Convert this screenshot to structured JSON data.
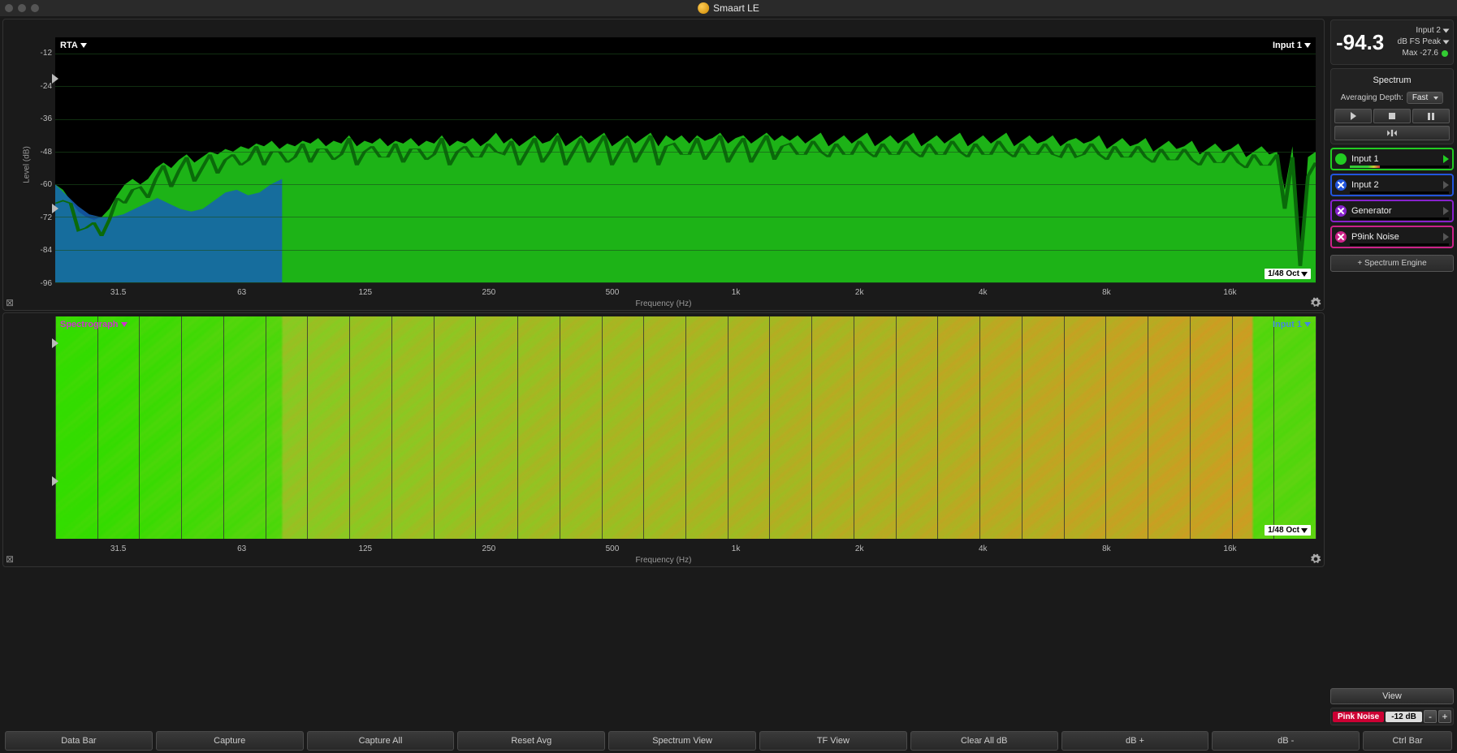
{
  "app_title": "Smaart LE",
  "titlebar": {
    "traffic_colors": [
      "#555",
      "#555",
      "#555"
    ]
  },
  "level_meter": {
    "value": "-94.3",
    "input_label": "Input 2",
    "peak_label": "dB FS Peak",
    "max_label": "Max -27.6"
  },
  "spectrum_panel": {
    "title": "Spectrum",
    "avg_label": "Averaging Depth:",
    "avg_value": "Fast",
    "inputs": [
      {
        "label": "Input 1",
        "border": "#22cc22",
        "bullet": "#22cc22",
        "x": false,
        "play": "#22cc22",
        "meter_fill": 30,
        "meter_color": "linear-gradient(90deg,#3c3 60%,#cc3 80%,#c33)"
      },
      {
        "label": "Input 2",
        "border": "#2255dd",
        "bullet": "#2255dd",
        "x": true,
        "play": "#555",
        "meter_fill": 0,
        "meter_color": ""
      },
      {
        "label": "Generator",
        "border": "#8822cc",
        "bullet": "#8822cc",
        "x": true,
        "play": "#555",
        "meter_fill": 0,
        "meter_color": ""
      },
      {
        "label": "P9ink Noise",
        "border": "#cc2288",
        "bullet": "#cc2288",
        "x": true,
        "play": "#555",
        "meter_fill": 0,
        "meter_color": ""
      }
    ],
    "add_engine": "+ Spectrum Engine"
  },
  "view_button": "View",
  "noise_row": {
    "label": "Pink Noise",
    "db": "-12 dB"
  },
  "bottombar": [
    "Data Bar",
    "Capture",
    "Capture All",
    "Reset Avg",
    "Spectrum View",
    "TF View",
    "Clear All dB",
    "dB +",
    "dB -",
    "Ctrl Bar"
  ],
  "rta_chart": {
    "type": "spectrum",
    "title_left": "RTA",
    "title_right": "Input 1",
    "resolution_badge": "1/48 Oct",
    "yaxis_label": "Level (dB)",
    "xaxis_label": "Frequency (Hz)",
    "ylim": [
      -96,
      -6
    ],
    "yticks": [
      -12,
      -24,
      -36,
      -48,
      -60,
      -72,
      -84,
      -96
    ],
    "xticks": [
      "31.5",
      "63",
      "125",
      "250",
      "500",
      "1k",
      "2k",
      "4k",
      "8k",
      "16k"
    ],
    "xtick_positions_pct": [
      5.0,
      14.8,
      24.6,
      34.4,
      44.2,
      54.0,
      63.8,
      73.6,
      83.4,
      93.2
    ],
    "marker_positions_pct": [
      15,
      68
    ],
    "fill_color": "#1db317",
    "line_overlay_color": "#0a6a0a",
    "blue_fill_color": "#1560b5",
    "grid_color": "#1a4d1a",
    "data_db": [
      -60,
      -62,
      -66,
      -70,
      -72,
      -73,
      -72,
      -69,
      -64,
      -60,
      -58,
      -60,
      -58,
      -54,
      -52,
      -54,
      -51,
      -49,
      -52,
      -50,
      -48,
      -49,
      -47,
      -48,
      -46,
      -47,
      -45,
      -46,
      -44,
      -47,
      -45,
      -46,
      -44,
      -45,
      -43,
      -46,
      -44,
      -45,
      -42,
      -46,
      -44,
      -45,
      -43,
      -46,
      -44,
      -45,
      -43,
      -46,
      -44,
      -45,
      -42,
      -46,
      -44,
      -45,
      -43,
      -46,
      -44,
      -41,
      -45,
      -43,
      -46,
      -44,
      -42,
      -45,
      -44,
      -41,
      -46,
      -44,
      -42,
      -45,
      -43,
      -41,
      -46,
      -44,
      -42,
      -45,
      -43,
      -41,
      -46,
      -42,
      -44,
      -42,
      -45,
      -42,
      -44,
      -43,
      -41,
      -45,
      -43,
      -42,
      -45,
      -43,
      -41,
      -44,
      -42,
      -44,
      -42,
      -45,
      -43,
      -41,
      -46,
      -44,
      -42,
      -45,
      -43,
      -41,
      -46,
      -44,
      -42,
      -45,
      -43,
      -41,
      -46,
      -44,
      -42,
      -45,
      -43,
      -41,
      -46,
      -44,
      -42,
      -45,
      -43,
      -41,
      -46,
      -44,
      -42,
      -45,
      -44,
      -42,
      -46,
      -44,
      -43,
      -45,
      -44,
      -42,
      -47,
      -45,
      -43,
      -46,
      -45,
      -43,
      -48,
      -46,
      -44,
      -47,
      -46,
      -44,
      -49,
      -47,
      -45,
      -48,
      -47,
      -45,
      -50,
      -48,
      -46,
      -49,
      -48,
      -62,
      -46,
      -89,
      -50,
      -48
    ]
  },
  "spectrograph_chart": {
    "type": "spectrograph",
    "title_left": "Spectrograph",
    "title_left_color": "#cc33cc",
    "title_right": "Input 1",
    "title_right_color": "#4488dd",
    "resolution_badge": "1/48 Oct",
    "xaxis_label": "Frequency (Hz)",
    "xticks": [
      "31.5",
      "63",
      "125",
      "250",
      "500",
      "1k",
      "2k",
      "4k",
      "8k",
      "16k"
    ],
    "xtick_positions_pct": [
      5.0,
      14.8,
      24.6,
      34.4,
      44.2,
      54.0,
      63.8,
      73.6,
      83.4,
      93.2
    ],
    "marker_positions_pct": [
      10,
      72
    ],
    "grid_color": "#222",
    "colormap_low": "#33dd00",
    "colormap_mid": "#88cc22",
    "colormap_high": "#ee8822"
  }
}
